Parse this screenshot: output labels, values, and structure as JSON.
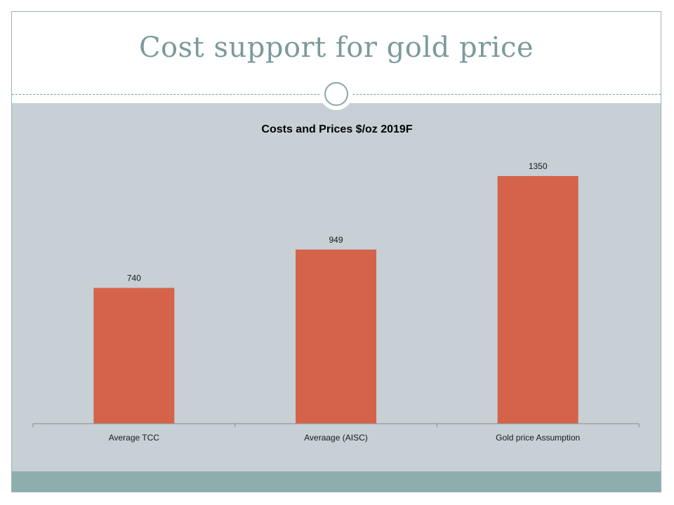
{
  "slide": {
    "title": "Cost support for gold price"
  },
  "colors": {
    "title_text": "#7c9a9b",
    "content_background": "#c6d0d5",
    "footer_band": "#8eaeae",
    "bar_fill": "#d4634a"
  },
  "chart_data": {
    "type": "bar",
    "title": "Costs and Prices $/oz 2019F",
    "categories": [
      "Average TCC",
      "Averaage (AISC)",
      "Gold price Assumption"
    ],
    "values": [
      740,
      949,
      1350
    ],
    "xlabel": "",
    "ylabel": "",
    "ylim": [
      0,
      1500
    ],
    "grid": false,
    "legend": "none",
    "data_labels": true
  }
}
